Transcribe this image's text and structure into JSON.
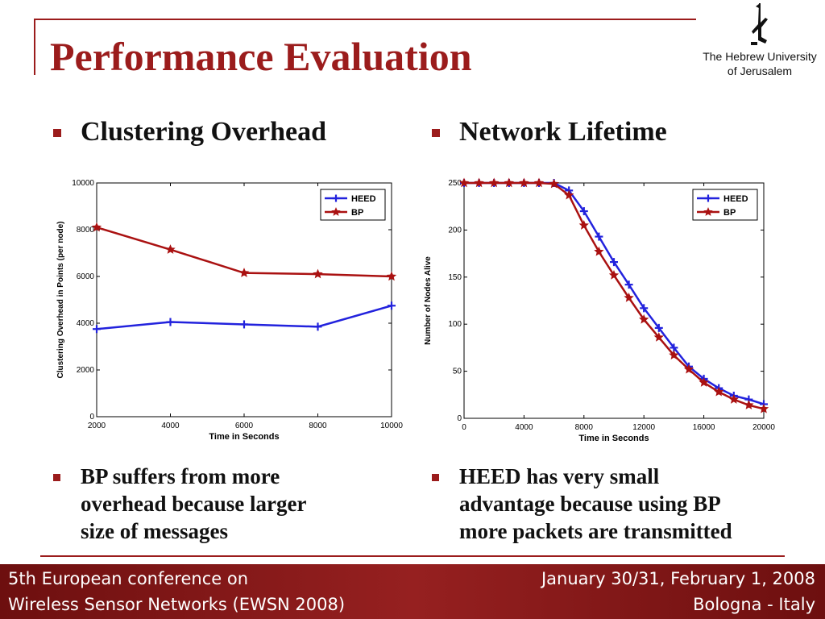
{
  "title": "Performance Evaluation",
  "logo": {
    "line1": "The Hebrew University",
    "line2": "of Jerusalem"
  },
  "left": {
    "heading": "Clustering Overhead",
    "note_lines": [
      "BP suffers from more",
      "overhead because larger",
      "size of  messages"
    ]
  },
  "right": {
    "heading": "Network Lifetime",
    "note_lines": [
      "HEED has very small",
      "advantage because using BP",
      "more packets are transmitted"
    ]
  },
  "footer": {
    "left1": "5th European conference on",
    "left2": "Wireless Sensor Networks (EWSN 2008)",
    "right1": "January 30/31, February 1, 2008",
    "right2": "Bologna - Italy"
  },
  "colors": {
    "accent": "#9b1c1c",
    "heed": "#2222dd",
    "bp": "#aa1111"
  },
  "chart_data": [
    {
      "type": "line",
      "xlabel": "Time in Seconds",
      "ylabel": "Clustering Overhead in Points (per node)",
      "xlim": [
        2000,
        10000
      ],
      "ylim": [
        0,
        10000
      ],
      "xticks": [
        2000,
        4000,
        6000,
        8000,
        10000
      ],
      "yticks": [
        0,
        2000,
        4000,
        6000,
        8000,
        10000
      ],
      "legend": "top-right",
      "series": [
        {
          "name": "HEED",
          "marker": "plus",
          "x": [
            2000,
            4000,
            6000,
            8000,
            10000
          ],
          "y": [
            3750,
            4050,
            3950,
            3850,
            4750
          ]
        },
        {
          "name": "BP",
          "marker": "star",
          "x": [
            2000,
            4000,
            6000,
            8000,
            10000
          ],
          "y": [
            8100,
            7150,
            6150,
            6100,
            6000
          ]
        }
      ]
    },
    {
      "type": "line",
      "xlabel": "Time in Seconds",
      "ylabel": "Number of Nodes Alive",
      "xlim": [
        0,
        20000
      ],
      "ylim": [
        0,
        250
      ],
      "xticks": [
        0,
        4000,
        8000,
        12000,
        16000,
        20000
      ],
      "yticks": [
        0,
        50,
        100,
        150,
        200,
        250
      ],
      "legend": "top-right",
      "series": [
        {
          "name": "HEED",
          "marker": "plus",
          "x": [
            0,
            1000,
            2000,
            3000,
            4000,
            5000,
            6000,
            7000,
            8000,
            9000,
            10000,
            11000,
            12000,
            13000,
            14000,
            15000,
            16000,
            17000,
            18000,
            19000,
            20000
          ],
          "y": [
            250,
            250,
            250,
            250,
            250,
            250,
            250,
            242,
            220,
            193,
            166,
            142,
            117,
            96,
            75,
            55,
            42,
            32,
            24,
            20,
            15
          ]
        },
        {
          "name": "BP",
          "marker": "star",
          "x": [
            0,
            1000,
            2000,
            3000,
            4000,
            5000,
            6000,
            7000,
            8000,
            9000,
            10000,
            11000,
            12000,
            13000,
            14000,
            15000,
            16000,
            17000,
            18000,
            19000,
            20000
          ],
          "y": [
            250,
            250,
            250,
            250,
            250,
            250,
            249,
            237,
            205,
            177,
            152,
            128,
            105,
            86,
            67,
            52,
            38,
            28,
            20,
            14,
            10
          ]
        }
      ]
    }
  ]
}
